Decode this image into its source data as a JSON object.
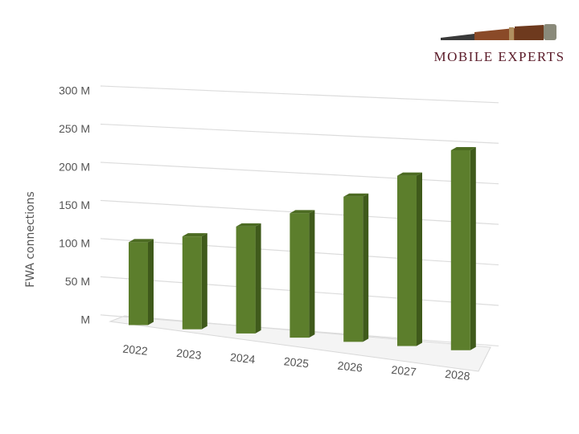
{
  "chart_data": {
    "type": "bar3d",
    "logo": "MOBILE EXPERTS",
    "y_label": "FWA connections",
    "categories": [
      "2022",
      "2023",
      "2024",
      "2025",
      "2026",
      "2027",
      "2028"
    ],
    "values": [
      108,
      120,
      137,
      158,
      183,
      213,
      248
    ],
    "color": "#5c7e2c",
    "ylim": [
      0,
      300
    ],
    "yticks": [
      {
        "value": 0,
        "label": "M"
      },
      {
        "value": 50,
        "label": "50 M"
      },
      {
        "value": 100,
        "label": "100 M"
      },
      {
        "value": 150,
        "label": "150 M"
      },
      {
        "value": 200,
        "label": "200 M"
      },
      {
        "value": 250,
        "label": "250 M"
      },
      {
        "value": 300,
        "label": "300 M"
      }
    ],
    "grid": true
  }
}
